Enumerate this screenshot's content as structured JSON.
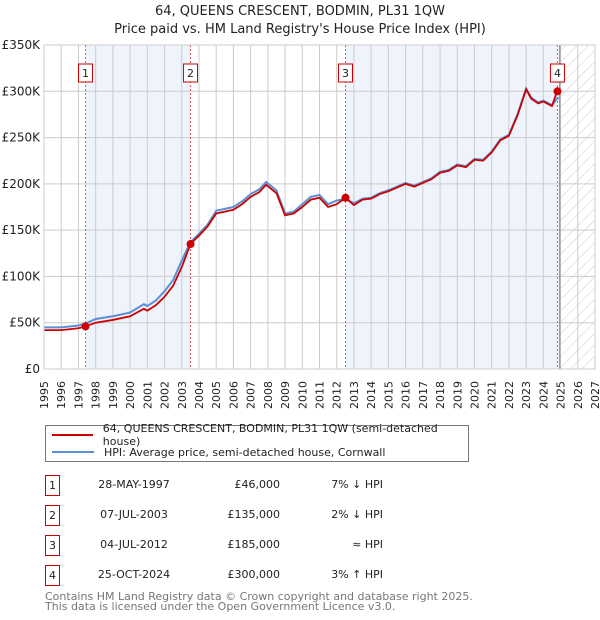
{
  "header": {
    "title": "64, QUEENS CRESCENT, BODMIN, PL31 1QW",
    "subtitle": "Price paid vs. HM Land Registry's House Price Index (HPI)"
  },
  "chart_data": {
    "type": "line",
    "title": "64, QUEENS CRESCENT, BODMIN, PL31 1QW",
    "subtitle": "Price paid vs. HM Land Registry's House Price Index (HPI)",
    "xlim": [
      1995,
      2027
    ],
    "ylim": [
      0,
      350000
    ],
    "x_ticks": [
      "1995",
      "1996",
      "1997",
      "1998",
      "1999",
      "2000",
      "2001",
      "2002",
      "2003",
      "2004",
      "2005",
      "2006",
      "2007",
      "2008",
      "2009",
      "2010",
      "2011",
      "2012",
      "2013",
      "2014",
      "2015",
      "2016",
      "2017",
      "2018",
      "2019",
      "2020",
      "2021",
      "2022",
      "2023",
      "2024",
      "2025",
      "2026",
      "2027"
    ],
    "y_ticks": [
      {
        "v": 0,
        "label": "£0"
      },
      {
        "v": 50000,
        "label": "£50K"
      },
      {
        "v": 100000,
        "label": "£100K"
      },
      {
        "v": 150000,
        "label": "£150K"
      },
      {
        "v": 200000,
        "label": "£200K"
      },
      {
        "v": 250000,
        "label": "£250K"
      },
      {
        "v": 300000,
        "label": "£300K"
      },
      {
        "v": 350000,
        "label": "£350K"
      }
    ],
    "grid": true,
    "shaded_periods": [
      [
        1997.4,
        2003.5
      ],
      [
        2012.5,
        2024.8
      ]
    ],
    "forecast_hatched": [
      2025,
      2027
    ],
    "series": [
      {
        "name": "64, QUEENS CRESCENT, BODMIN, PL31 1QW (semi-detached house)",
        "color": "#cc0000",
        "x": [
          1995,
          1996,
          1997,
          1997.4,
          1998,
          1999,
          2000,
          2000.8,
          2001,
          2001.5,
          2002,
          2002.5,
          2003,
          2003.5,
          2004,
          2004.5,
          2005,
          2005.5,
          2006,
          2006.5,
          2007,
          2007.5,
          2007.9,
          2008.5,
          2009,
          2009.5,
          2010,
          2010.5,
          2011,
          2011.5,
          2012,
          2012.5,
          2013,
          2013.5,
          2014,
          2014.5,
          2015,
          2015.5,
          2016,
          2016.5,
          2017,
          2017.5,
          2018,
          2018.5,
          2019,
          2019.5,
          2020,
          2020.5,
          2021,
          2021.5,
          2022,
          2022.5,
          2023,
          2023.3,
          2023.7,
          2024,
          2024.5,
          2024.8,
          2024.9
        ],
        "y": [
          42000,
          42000,
          44000,
          46000,
          50000,
          53000,
          57000,
          65000,
          63000,
          69000,
          78000,
          90000,
          110000,
          135000,
          144000,
          154000,
          168000,
          170000,
          172000,
          178000,
          186000,
          191000,
          199000,
          190000,
          166000,
          168000,
          175000,
          183000,
          185000,
          175000,
          178000,
          185000,
          177000,
          183000,
          184000,
          189000,
          192000,
          196000,
          200000,
          197000,
          201000,
          205000,
          212000,
          214000,
          220000,
          218000,
          226000,
          225000,
          234000,
          247000,
          252000,
          274000,
          302000,
          292000,
          287000,
          289000,
          284000,
          300000,
          300000
        ]
      },
      {
        "name": "HPI: Average price, semi-detached house, Cornwall",
        "color": "#5b8fd4",
        "x": [
          1995,
          1996,
          1997,
          1997.4,
          1998,
          1999,
          2000,
          2000.8,
          2001,
          2001.5,
          2002,
          2002.5,
          2003,
          2003.5,
          2004,
          2004.5,
          2005,
          2005.5,
          2006,
          2006.5,
          2007,
          2007.5,
          2007.9,
          2008.5,
          2009,
          2009.5,
          2010,
          2010.5,
          2011,
          2011.5,
          2012,
          2012.5,
          2013,
          2013.5,
          2014,
          2014.5,
          2015,
          2015.5,
          2016,
          2016.5,
          2017,
          2017.5,
          2018,
          2018.5,
          2019,
          2019.5,
          2020,
          2020.5,
          2021,
          2021.5,
          2022,
          2022.5,
          2023,
          2023.3,
          2023.7,
          2024,
          2024.5,
          2024.8,
          2024.9
        ],
        "y": [
          45000,
          45000,
          47000,
          49000,
          54000,
          57000,
          61000,
          70000,
          68000,
          74000,
          84000,
          96000,
          117000,
          137000,
          146000,
          156000,
          171000,
          173000,
          175000,
          181000,
          189000,
          194000,
          202000,
          193000,
          168000,
          170000,
          178000,
          186000,
          188000,
          178000,
          182000,
          184000,
          179000,
          184000,
          185000,
          190000,
          193000,
          197000,
          201000,
          198000,
          202000,
          206000,
          213000,
          215000,
          221000,
          219000,
          227000,
          226000,
          235000,
          248000,
          253000,
          275000,
          303000,
          293000,
          288000,
          290000,
          285000,
          292000,
          293000
        ]
      }
    ],
    "sales": [
      {
        "n": "1",
        "x": 1997.41,
        "y": 46000
      },
      {
        "n": "2",
        "x": 2003.51,
        "y": 135000
      },
      {
        "n": "3",
        "x": 2012.51,
        "y": 185000
      },
      {
        "n": "4",
        "x": 2024.82,
        "y": 300000
      }
    ]
  },
  "legend": {
    "property": "64, QUEENS CRESCENT, BODMIN, PL31 1QW (semi-detached house)",
    "hpi": "HPI: Average price, semi-detached house, Cornwall"
  },
  "transactions": [
    {
      "n": "1",
      "date": "28-MAY-1997",
      "price": "£46,000",
      "rel": "7% ↓ HPI"
    },
    {
      "n": "2",
      "date": "07-JUL-2003",
      "price": "£135,000",
      "rel": "2% ↓ HPI"
    },
    {
      "n": "3",
      "date": "04-JUL-2012",
      "price": "£185,000",
      "rel": "≈ HPI"
    },
    {
      "n": "4",
      "date": "25-OCT-2024",
      "price": "£300,000",
      "rel": "3% ↑ HPI"
    }
  ],
  "footer": {
    "line1": "Contains HM Land Registry data © Crown copyright and database right 2025.",
    "line2": "This data is licensed under the Open Government Licence v3.0."
  }
}
